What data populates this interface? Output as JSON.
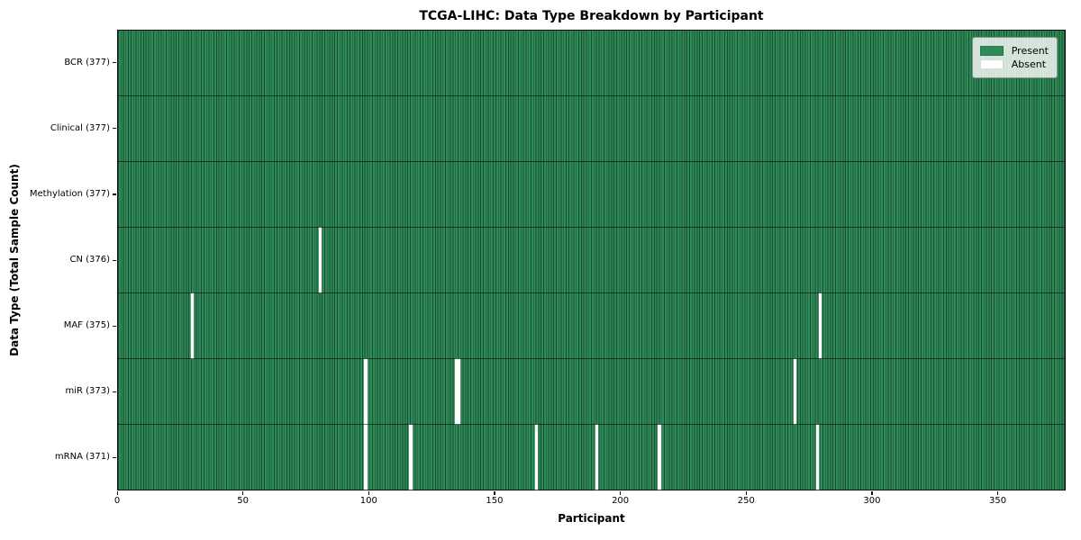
{
  "chart_data": {
    "type": "heatmap",
    "title": "TCGA-LIHC: Data Type Breakdown by Participant",
    "xlabel": "Participant",
    "ylabel": "Data Type (Total Sample Count)",
    "n_participants": 377,
    "xlim": [
      0,
      377
    ],
    "x_ticks": [
      0,
      50,
      100,
      150,
      200,
      250,
      300,
      350
    ],
    "grid": false,
    "colors": {
      "present": "#2e8b57",
      "absent": "#ffffff"
    },
    "legend": {
      "position": "upper right",
      "entries": [
        {
          "label": "Present",
          "color": "#2e8b57"
        },
        {
          "label": "Absent",
          "color": "#ffffff"
        }
      ]
    },
    "rows": [
      {
        "name": "BCR",
        "total": 377,
        "label": "BCR (377)",
        "absent_participants": []
      },
      {
        "name": "Clinical",
        "total": 377,
        "label": "Clinical (377)",
        "absent_participants": []
      },
      {
        "name": "Methylation",
        "total": 377,
        "label": "Methylation (377)",
        "absent_participants": []
      },
      {
        "name": "CN",
        "total": 376,
        "label": "CN (376)",
        "absent_participants": [
          80
        ]
      },
      {
        "name": "MAF",
        "total": 375,
        "label": "MAF (375)",
        "absent_participants": [
          29,
          279
        ]
      },
      {
        "name": "miR",
        "total": 373,
        "label": "miR (373)",
        "absent_participants": [
          98,
          134,
          135,
          269
        ]
      },
      {
        "name": "mRNA",
        "total": 371,
        "label": "mRNA (371)",
        "absent_participants": [
          98,
          116,
          166,
          190,
          215,
          278
        ]
      }
    ]
  }
}
